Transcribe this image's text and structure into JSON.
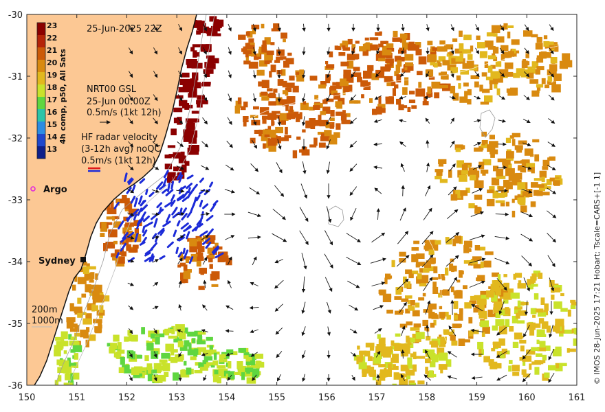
{
  "map": {
    "lon_range": [
      150,
      161
    ],
    "lat_range": [
      -36,
      -30
    ],
    "x_ticks": [
      "150",
      "151",
      "152",
      "153",
      "154",
      "155",
      "156",
      "157",
      "158",
      "159",
      "160",
      "161"
    ],
    "y_ticks": [
      "-30",
      "-31",
      "-32",
      "-33",
      "-34",
      "-35",
      "-36"
    ],
    "timestamp": "25-Jun-2025 22Z",
    "colors": {
      "land": "#fcc894",
      "sea": "#ffffff",
      "radar": "#1c2bd8",
      "argo": "#e020e0",
      "contour": "#bbbbbb"
    }
  },
  "colorbar": {
    "title": "4h comp, p50, All Sats",
    "values": [
      "23",
      "22",
      "21",
      "20",
      "19",
      "18",
      "17",
      "16",
      "15",
      "14",
      "13"
    ],
    "colors": [
      "#8b0000",
      "#b52408",
      "#cc5a08",
      "#d98a10",
      "#e2b81e",
      "#c9e22b",
      "#5fd640",
      "#2bc4a8",
      "#2b8ce2",
      "#1e47cc",
      "#0d1f8a"
    ]
  },
  "legend": {
    "nrt_lines": [
      "NRT00 GSL",
      "25-Jun 00:00Z",
      "0.5m/s (1kt 12h)"
    ],
    "radar_lines": [
      "HF radar velocity",
      "(3-12h avg) noQC",
      "0.5m/s (1kt 12h)"
    ],
    "depth_lines": [
      "200m",
      "1000m"
    ]
  },
  "places": {
    "argo": "Argo",
    "sydney": "Sydney"
  },
  "credit": "© IMOS 28-Jun-2025 17:21 Hobart; Tscale=CARS+[-1 1]"
}
